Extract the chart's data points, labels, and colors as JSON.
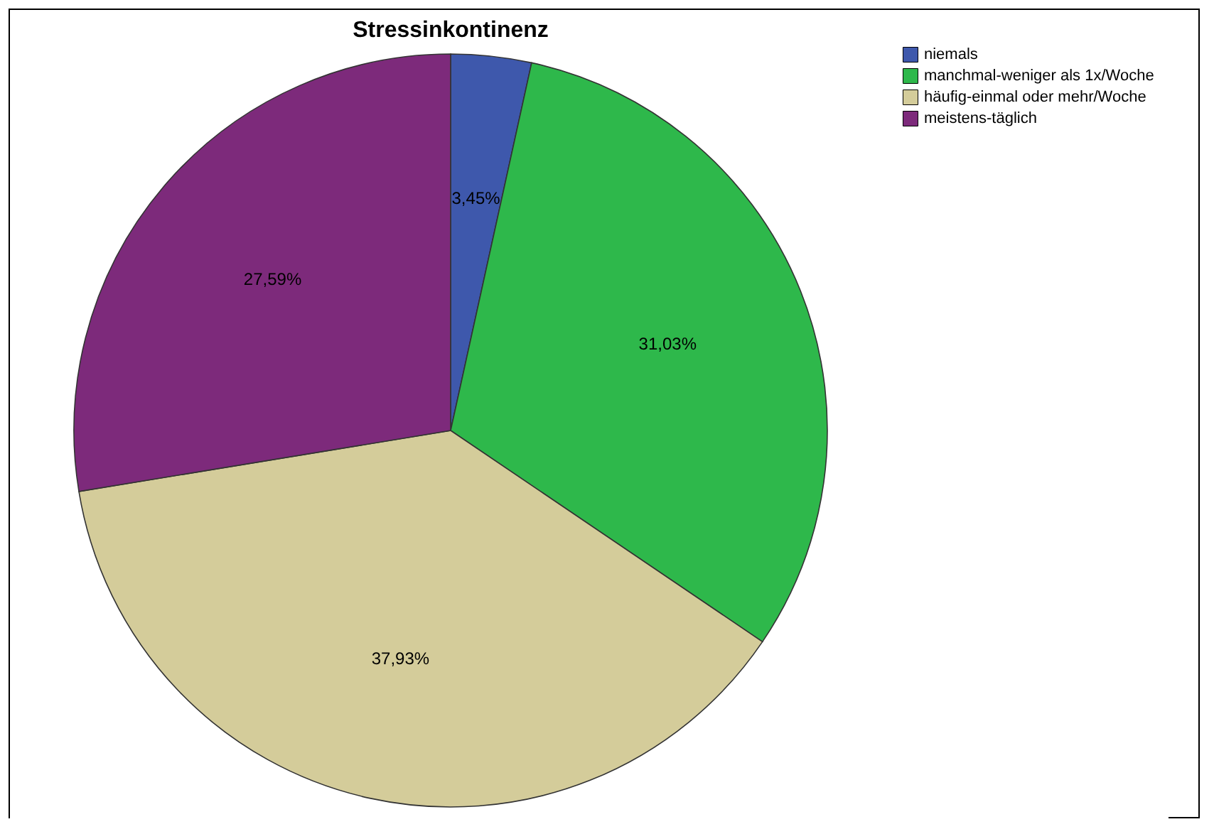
{
  "chart_data": {
    "type": "pie",
    "title": "Stressinkontinenz",
    "categories": [
      "niemals",
      "manchmal-weniger als 1x/Woche",
      "häufig-einmal oder mehr/Woche",
      "meistens-täglich"
    ],
    "values": [
      3.45,
      31.03,
      37.93,
      27.59
    ],
    "colors": [
      "#3e58ac",
      "#2eb84b",
      "#d4cc9a",
      "#7d2a7b"
    ],
    "value_labels": [
      "3,45%",
      "31,03%",
      "37,93%",
      "27,59%"
    ],
    "legend": "top right"
  }
}
